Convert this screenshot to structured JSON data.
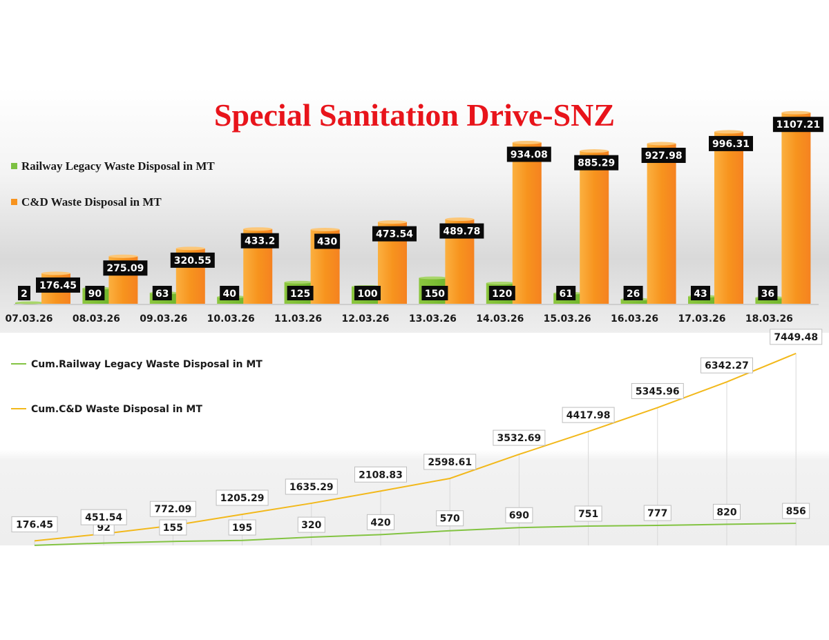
{
  "title": "Special Sanitation Drive-SNZ",
  "colors": {
    "title": "#e8141b",
    "green": "#7dc142",
    "orange": "#f7931e",
    "yellow_line": "#f2b81a",
    "green_line": "#82c341",
    "label_bg": "#0a0a0a"
  },
  "chart_data": [
    {
      "type": "bar",
      "title": "Special Sanitation Drive-SNZ",
      "categories": [
        "07.03.26",
        "08.03.26",
        "09.03.26",
        "10.03.26",
        "11.03.26",
        "12.03.26",
        "13.03.26",
        "14.03.26",
        "15.03.26",
        "16.03.26",
        "17.03.26",
        "18.03.26"
      ],
      "series": [
        {
          "name": "Railway Legacy Waste Disposal  in MT",
          "values": [
            2,
            90,
            63,
            40,
            125,
            100,
            150,
            120,
            61,
            26,
            43,
            36
          ]
        },
        {
          "name": "C&D Waste Disposal in MT",
          "values": [
            176.45,
            275.09,
            320.55,
            433.2,
            430,
            473.54,
            489.78,
            934.08,
            885.29,
            927.98,
            996.31,
            1107.21
          ]
        }
      ],
      "data_labels": {
        "series_0": [
          "2",
          "90",
          "63",
          "40",
          "125",
          "100",
          "150",
          "120",
          "61",
          "26",
          "43",
          "36"
        ],
        "series_1": [
          "176.45",
          "275.09",
          "320.55",
          "433.2",
          "430",
          "473.54",
          "489.78",
          "934.08",
          "885.29",
          "927.98",
          "996.31",
          "1107.21"
        ]
      },
      "xlabel": "",
      "ylabel": "",
      "ylim": [
        0,
        1200
      ],
      "legend": "top-left"
    },
    {
      "type": "line",
      "categories": [
        "07.03.26",
        "08.03.26",
        "09.03.26",
        "10.03.26",
        "11.03.26",
        "12.03.26",
        "13.03.26",
        "14.03.26",
        "15.03.26",
        "16.03.26",
        "17.03.26",
        "18.03.26"
      ],
      "series": [
        {
          "name": "Cum.Railway Legacy Waste Disposal  in MT",
          "values": [
            2,
            92,
            155,
            195,
            320,
            420,
            570,
            690,
            751,
            777,
            820,
            856
          ]
        },
        {
          "name": "Cum.C&D Waste Disposal in MT",
          "values": [
            176.45,
            451.54,
            772.09,
            1205.29,
            1635.29,
            2108.83,
            2598.61,
            3532.69,
            4417.98,
            5345.96,
            6342.27,
            7449.48
          ]
        }
      ],
      "data_labels": {
        "series_0": [
          "",
          "92",
          "155",
          "195",
          "320",
          "420",
          "570",
          "690",
          "751",
          "777",
          "820",
          "856"
        ],
        "series_1": [
          "176.45",
          "451.54",
          "772.09",
          "1205.29",
          "1635.29",
          "2108.83",
          "2598.61",
          "3532.69",
          "4417.98",
          "5345.96",
          "6342.27",
          "7449.48"
        ]
      },
      "xlabel": "",
      "ylabel": "",
      "ylim": [
        0,
        7500
      ],
      "legend": "top-left"
    }
  ]
}
